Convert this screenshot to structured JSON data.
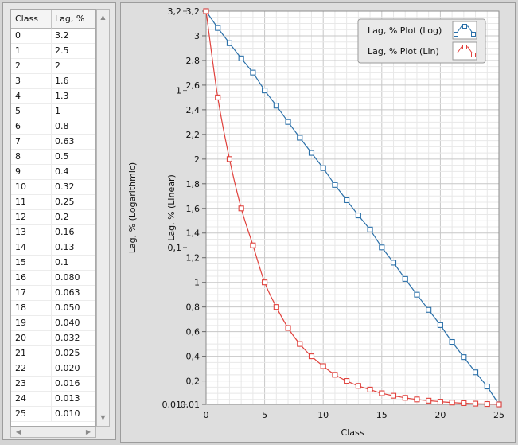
{
  "table": {
    "headers": [
      "Class",
      "Lag, %"
    ],
    "rows": [
      [
        "0",
        "3.2"
      ],
      [
        "1",
        "2.5"
      ],
      [
        "2",
        "2"
      ],
      [
        "3",
        "1.6"
      ],
      [
        "4",
        "1.3"
      ],
      [
        "5",
        "1"
      ],
      [
        "6",
        "0.8"
      ],
      [
        "7",
        "0.63"
      ],
      [
        "8",
        "0.5"
      ],
      [
        "9",
        "0.4"
      ],
      [
        "10",
        "0.32"
      ],
      [
        "11",
        "0.25"
      ],
      [
        "12",
        "0.2"
      ],
      [
        "13",
        "0.16"
      ],
      [
        "14",
        "0.13"
      ],
      [
        "15",
        "0.1"
      ],
      [
        "16",
        "0.080"
      ],
      [
        "17",
        "0.063"
      ],
      [
        "18",
        "0.050"
      ],
      [
        "19",
        "0.040"
      ],
      [
        "20",
        "0.032"
      ],
      [
        "21",
        "0.025"
      ],
      [
        "22",
        "0.020"
      ],
      [
        "23",
        "0.016"
      ],
      [
        "24",
        "0.013"
      ],
      [
        "25",
        "0.010"
      ]
    ]
  },
  "chart_data": {
    "type": "line",
    "xlabel": "Class",
    "ylabel_linear": "Lag, % (Linear)",
    "ylabel_log": "Lag, % (Logarithmic)",
    "xlim": [
      0,
      25
    ],
    "xticks": [
      "0",
      "5",
      "10",
      "15",
      "20",
      "25"
    ],
    "ylim_linear": [
      0.01,
      3.2
    ],
    "yticks_linear": [
      "0,01",
      "0,2",
      "0,4",
      "0,6",
      "0,8",
      "1",
      "1,2",
      "1,4",
      "1,6",
      "1,8",
      "2",
      "2,2",
      "2,4",
      "2,6",
      "2,8",
      "3",
      "3,2"
    ],
    "ylim_log": [
      0.01,
      3.2
    ],
    "yticks_log": [
      "0,01",
      "0,1",
      "1",
      "3,2"
    ],
    "x": [
      0,
      1,
      2,
      3,
      4,
      5,
      6,
      7,
      8,
      9,
      10,
      11,
      12,
      13,
      14,
      15,
      16,
      17,
      18,
      19,
      20,
      21,
      22,
      23,
      24,
      25
    ],
    "grid": true,
    "legend_position": "top-right",
    "series": [
      {
        "name": "Lag, % Plot (Log)",
        "axis": "log",
        "color": "#2a6fa8",
        "values": [
          3.2,
          2.5,
          2,
          1.6,
          1.3,
          1,
          0.8,
          0.63,
          0.5,
          0.4,
          0.32,
          0.25,
          0.2,
          0.16,
          0.13,
          0.1,
          0.08,
          0.063,
          0.05,
          0.04,
          0.032,
          0.025,
          0.02,
          0.016,
          0.013,
          0.01
        ]
      },
      {
        "name": "Lag, % Plot (Lin)",
        "axis": "linear",
        "color": "#e0413c",
        "values": [
          3.2,
          2.5,
          2,
          1.6,
          1.3,
          1,
          0.8,
          0.63,
          0.5,
          0.4,
          0.32,
          0.25,
          0.2,
          0.16,
          0.13,
          0.1,
          0.08,
          0.063,
          0.05,
          0.04,
          0.032,
          0.025,
          0.02,
          0.016,
          0.013,
          0.01
        ]
      }
    ]
  }
}
